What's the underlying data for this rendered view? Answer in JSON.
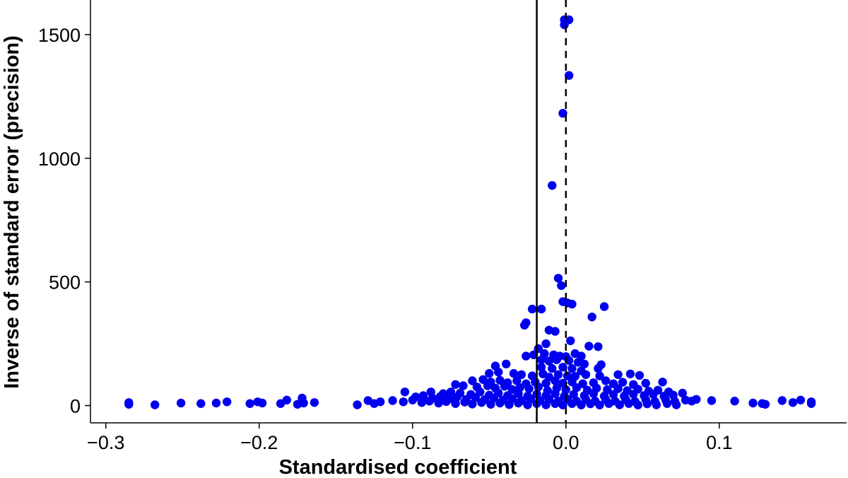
{
  "chart_data": {
    "type": "scatter",
    "title": "",
    "xlabel": "Standardised coefficient",
    "ylabel": "Inverse of standard error (precision)",
    "xlim": [
      -0.31,
      0.183
    ],
    "ylim": [
      -70,
      1640
    ],
    "x_ticks": [
      -0.3,
      -0.2,
      -0.1,
      0.0,
      0.1
    ],
    "x_tick_labels": [
      "−0.3",
      "−0.2",
      "−0.1",
      "0.0",
      "0.1"
    ],
    "y_ticks": [
      0,
      500,
      1000,
      1500
    ],
    "y_tick_labels": [
      "0",
      "500",
      "1000",
      "1500"
    ],
    "reference_lines": [
      {
        "x": -0.019,
        "style": "solid"
      },
      {
        "x": 0.0,
        "style": "dashed"
      }
    ],
    "point_color": "#0000ee",
    "points": [
      [
        -0.001,
        1560
      ],
      [
        0.002,
        1560
      ],
      [
        -0.001,
        1540
      ],
      [
        0.002,
        1335
      ],
      [
        -0.002,
        1182
      ],
      [
        -0.009,
        890
      ],
      [
        -0.005,
        515
      ],
      [
        -0.003,
        485
      ],
      [
        -0.002,
        420
      ],
      [
        0.001,
        415
      ],
      [
        0.004,
        410
      ],
      [
        0.025,
        400
      ],
      [
        -0.022,
        390
      ],
      [
        -0.016,
        390
      ],
      [
        0.017,
        358
      ],
      [
        -0.026,
        335
      ],
      [
        -0.027,
        325
      ],
      [
        -0.011,
        305
      ],
      [
        -0.007,
        300
      ],
      [
        0.003,
        262
      ],
      [
        0.015,
        240
      ],
      [
        0.021,
        238
      ],
      [
        -0.013,
        250
      ],
      [
        -0.018,
        230
      ],
      [
        -0.026,
        200
      ],
      [
        -0.021,
        205
      ],
      [
        -0.014,
        210
      ],
      [
        -0.008,
        205
      ],
      [
        -0.004,
        200
      ],
      [
        0.0,
        198
      ],
      [
        0.006,
        210
      ],
      [
        0.01,
        200
      ],
      [
        -0.016,
        185
      ],
      [
        -0.011,
        180
      ],
      [
        -0.006,
        185
      ],
      [
        0.002,
        182
      ],
      [
        0.008,
        175
      ],
      [
        0.012,
        168
      ],
      [
        0.023,
        165
      ],
      [
        -0.039,
        168
      ],
      [
        -0.046,
        160
      ],
      [
        -0.016,
        155
      ],
      [
        -0.009,
        150
      ],
      [
        -0.002,
        155
      ],
      [
        0.004,
        150
      ],
      [
        0.01,
        140
      ],
      [
        0.021,
        150
      ],
      [
        -0.05,
        130
      ],
      [
        -0.044,
        135
      ],
      [
        -0.034,
        130
      ],
      [
        -0.029,
        125
      ],
      [
        -0.022,
        120
      ],
      [
        -0.015,
        128
      ],
      [
        -0.011,
        115
      ],
      [
        -0.005,
        125
      ],
      [
        0.001,
        120
      ],
      [
        0.006,
        118
      ],
      [
        0.013,
        125
      ],
      [
        0.022,
        120
      ],
      [
        0.034,
        125
      ],
      [
        0.042,
        128
      ],
      [
        0.048,
        122
      ],
      [
        -0.061,
        100
      ],
      [
        -0.054,
        105
      ],
      [
        -0.049,
        95
      ],
      [
        -0.043,
        102
      ],
      [
        -0.038,
        92
      ],
      [
        -0.032,
        100
      ],
      [
        -0.026,
        88
      ],
      [
        -0.02,
        95
      ],
      [
        -0.013,
        90
      ],
      [
        -0.007,
        100
      ],
      [
        -0.002,
        90
      ],
      [
        0.004,
        95
      ],
      [
        0.011,
        88
      ],
      [
        0.018,
        92
      ],
      [
        0.026,
        100
      ],
      [
        0.031,
        88
      ],
      [
        0.037,
        94
      ],
      [
        0.044,
        85
      ],
      [
        0.052,
        90
      ],
      [
        0.063,
        95
      ],
      [
        -0.072,
        85
      ],
      [
        -0.067,
        80
      ],
      [
        -0.058,
        75
      ],
      [
        -0.051,
        80
      ],
      [
        -0.046,
        70
      ],
      [
        -0.04,
        78
      ],
      [
        -0.035,
        65
      ],
      [
        -0.03,
        72
      ],
      [
        -0.024,
        68
      ],
      [
        -0.018,
        75
      ],
      [
        -0.012,
        60
      ],
      [
        -0.006,
        70
      ],
      [
        0.0,
        64
      ],
      [
        0.007,
        72
      ],
      [
        0.014,
        62
      ],
      [
        0.02,
        70
      ],
      [
        0.027,
        64
      ],
      [
        0.034,
        68
      ],
      [
        0.04,
        60
      ],
      [
        0.047,
        66
      ],
      [
        0.054,
        58
      ],
      [
        0.06,
        62
      ],
      [
        0.067,
        55
      ],
      [
        -0.088,
        55
      ],
      [
        -0.08,
        48
      ],
      [
        -0.075,
        55
      ],
      [
        -0.069,
        50
      ],
      [
        -0.062,
        45
      ],
      [
        -0.056,
        55
      ],
      [
        -0.05,
        42
      ],
      [
        -0.044,
        50
      ],
      [
        -0.038,
        40
      ],
      [
        -0.031,
        48
      ],
      [
        -0.025,
        38
      ],
      [
        -0.019,
        46
      ],
      [
        -0.013,
        40
      ],
      [
        -0.007,
        48
      ],
      [
        -0.001,
        38
      ],
      [
        0.005,
        45
      ],
      [
        0.012,
        40
      ],
      [
        0.018,
        48
      ],
      [
        0.025,
        38
      ],
      [
        0.031,
        45
      ],
      [
        0.038,
        38
      ],
      [
        0.044,
        46
      ],
      [
        0.051,
        40
      ],
      [
        0.057,
        45
      ],
      [
        0.064,
        38
      ],
      [
        0.07,
        42
      ],
      [
        0.076,
        50
      ],
      [
        -0.105,
        55
      ],
      [
        -0.098,
        35
      ],
      [
        -0.093,
        40
      ],
      [
        -0.087,
        30
      ],
      [
        -0.082,
        36
      ],
      [
        -0.076,
        28
      ],
      [
        -0.071,
        34
      ],
      [
        -0.065,
        25
      ],
      [
        -0.059,
        32
      ],
      [
        -0.053,
        24
      ],
      [
        -0.047,
        30
      ],
      [
        -0.041,
        22
      ],
      [
        -0.035,
        28
      ],
      [
        -0.029,
        20
      ],
      [
        -0.023,
        27
      ],
      [
        -0.017,
        20
      ],
      [
        -0.011,
        26
      ],
      [
        -0.005,
        18
      ],
      [
        0.001,
        24
      ],
      [
        0.007,
        18
      ],
      [
        0.013,
        25
      ],
      [
        0.019,
        18
      ],
      [
        0.026,
        24
      ],
      [
        0.032,
        18
      ],
      [
        0.039,
        24
      ],
      [
        0.045,
        17
      ],
      [
        0.052,
        24
      ],
      [
        0.058,
        17
      ],
      [
        0.065,
        23
      ],
      [
        0.071,
        17
      ],
      [
        0.078,
        22
      ],
      [
        -0.113,
        20
      ],
      [
        -0.106,
        15
      ],
      [
        -0.1,
        22
      ],
      [
        -0.094,
        12
      ],
      [
        -0.089,
        18
      ],
      [
        -0.083,
        10
      ],
      [
        -0.078,
        16
      ],
      [
        -0.072,
        8
      ],
      [
        -0.066,
        14
      ],
      [
        -0.061,
        6
      ],
      [
        -0.055,
        12
      ],
      [
        -0.049,
        5
      ],
      [
        -0.043,
        10
      ],
      [
        -0.037,
        4
      ],
      [
        -0.031,
        10
      ],
      [
        -0.025,
        3
      ],
      [
        -0.019,
        8
      ],
      [
        -0.013,
        3
      ],
      [
        -0.007,
        8
      ],
      [
        -0.002,
        2
      ],
      [
        0.004,
        8
      ],
      [
        0.01,
        2
      ],
      [
        0.016,
        7
      ],
      [
        0.022,
        2
      ],
      [
        0.028,
        8
      ],
      [
        0.035,
        3
      ],
      [
        0.041,
        8
      ],
      [
        0.047,
        2
      ],
      [
        0.053,
        7
      ],
      [
        0.059,
        3
      ],
      [
        0.066,
        8
      ],
      [
        0.072,
        3
      ],
      [
        0.082,
        18
      ],
      [
        0.085,
        25
      ],
      [
        0.095,
        20
      ],
      [
        0.11,
        18
      ],
      [
        0.122,
        10
      ],
      [
        0.128,
        8
      ],
      [
        0.13,
        5
      ],
      [
        0.141,
        20
      ],
      [
        0.148,
        12
      ],
      [
        0.153,
        22
      ],
      [
        0.16,
        15
      ],
      [
        0.16,
        8
      ],
      [
        -0.121,
        15
      ],
      [
        -0.125,
        8
      ],
      [
        -0.129,
        20
      ],
      [
        -0.136,
        3
      ],
      [
        -0.164,
        12
      ],
      [
        -0.171,
        10
      ],
      [
        -0.172,
        30
      ],
      [
        -0.175,
        5
      ],
      [
        -0.182,
        22
      ],
      [
        -0.186,
        8
      ],
      [
        -0.198,
        10
      ],
      [
        -0.201,
        15
      ],
      [
        -0.206,
        8
      ],
      [
        -0.221,
        15
      ],
      [
        -0.228,
        10
      ],
      [
        -0.238,
        8
      ],
      [
        -0.251,
        10
      ],
      [
        -0.268,
        3
      ],
      [
        -0.285,
        5
      ],
      [
        -0.285,
        12
      ]
    ]
  }
}
